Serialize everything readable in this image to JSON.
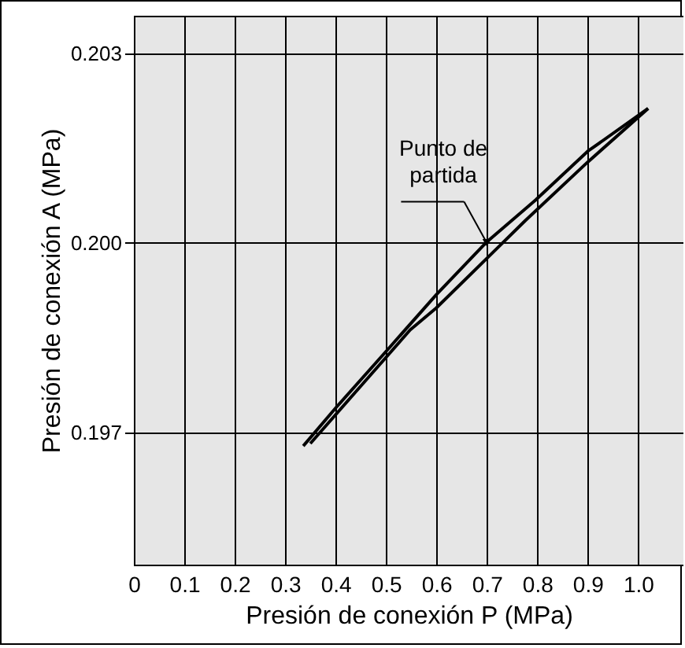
{
  "chart_data": {
    "type": "line",
    "xlabel": "Presión de conexión P (MPa)",
    "ylabel": "Presión de conexión A (MPa)",
    "series": [
      {
        "color": "#000000",
        "x": [
          0.336,
          0.4,
          0.508,
          0.6,
          0.698,
          0.797,
          0.9,
          1.02
        ],
        "values": [
          0.19678,
          0.19738,
          0.19835,
          0.19918,
          0.2,
          0.20068,
          0.20145,
          0.20213
        ]
      },
      {
        "color": "#000000",
        "x": [
          1.02,
          0.9,
          0.776,
          0.729,
          0.6,
          0.548,
          0.45,
          0.35
        ],
        "values": [
          0.20213,
          0.20128,
          0.20035,
          0.19998,
          0.19897,
          0.19862,
          0.19773,
          0.19682
        ]
      }
    ],
    "xlim": [
      0,
      1.09
    ],
    "xticks": [
      0,
      0.1,
      0.2,
      0.3,
      0.4,
      0.5,
      0.6,
      0.7,
      0.8,
      0.9,
      {
        "value": 1,
        "label": "1.0"
      }
    ],
    "ylim": [
      0.1949,
      0.2036
    ],
    "yticks": [
      0.197,
      {
        "value": 0.2,
        "label": "0.200"
      },
      0.203
    ],
    "grid": true,
    "marker": "none",
    "line_style": "solid",
    "annotations": [
      {
        "text": "Punto de partida",
        "x": 0.7,
        "y": 0.2
      }
    ]
  }
}
